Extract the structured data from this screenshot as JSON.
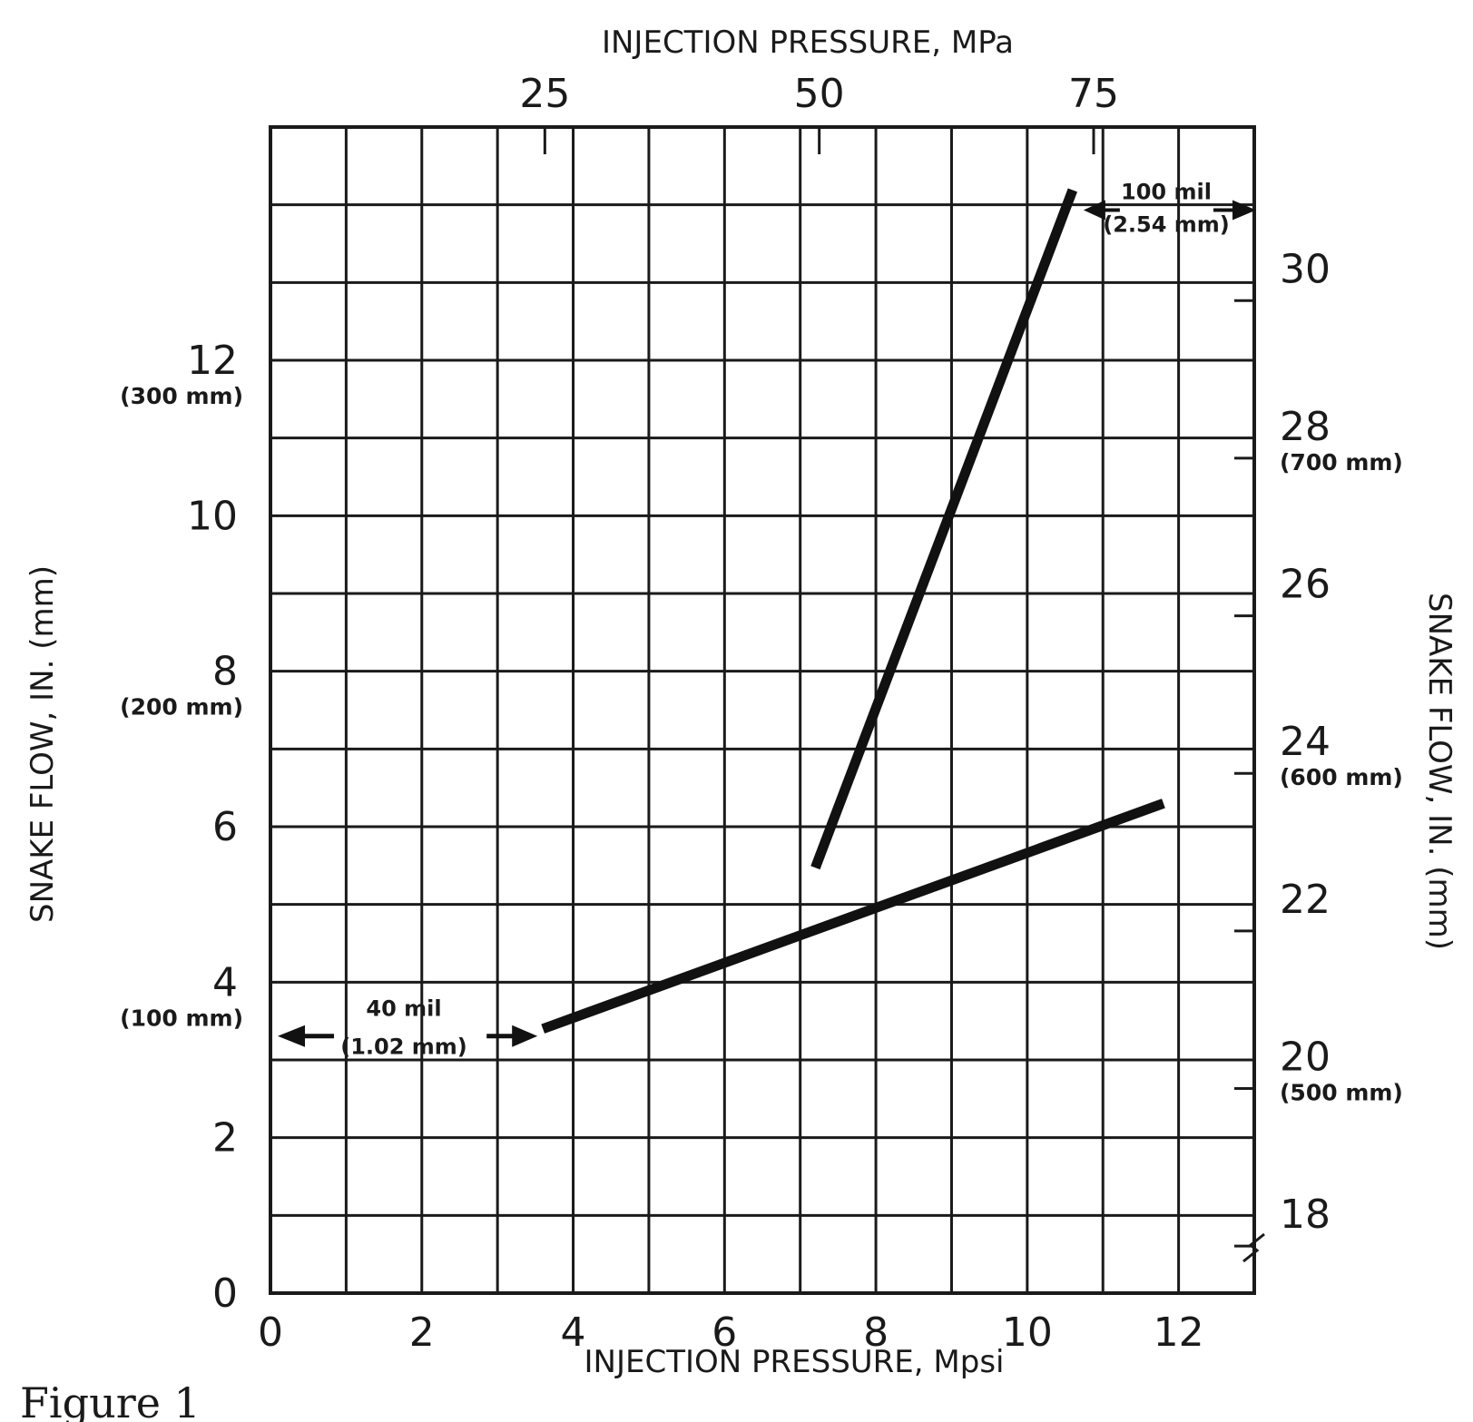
{
  "chart_data": {
    "type": "line",
    "xlabel": "INJECTION PRESSURE, Mpsi",
    "x2label": "INJECTION PRESSURE, MPa",
    "ylabel": "SNAKE FLOW, IN. (mm)",
    "y2label": "SNAKE FLOW, IN. (mm)",
    "xlim": [
      0,
      13
    ],
    "ylim": [
      0,
      15
    ],
    "y2lim": [
      17,
      31.8
    ],
    "grid": true,
    "x_ticks": [
      "0",
      "2",
      "4",
      "6",
      "8",
      "10",
      "12"
    ],
    "x2_ticks": [
      {
        "label": "25",
        "value": 25
      },
      {
        "label": "50",
        "value": 50
      },
      {
        "label": "75",
        "value": 75
      }
    ],
    "y_ticks": [
      {
        "label": "0",
        "value": 0,
        "sub": ""
      },
      {
        "label": "2",
        "value": 2,
        "sub": ""
      },
      {
        "label": "4",
        "value": 4,
        "sub": "(100 mm)"
      },
      {
        "label": "6",
        "value": 6,
        "sub": ""
      },
      {
        "label": "8",
        "value": 8,
        "sub": "(200 mm)"
      },
      {
        "label": "10",
        "value": 10,
        "sub": ""
      },
      {
        "label": "12",
        "value": 12,
        "sub": "(300 mm)"
      }
    ],
    "y2_ticks": [
      {
        "label": "18",
        "value": 18,
        "sub": ""
      },
      {
        "label": "20",
        "value": 20,
        "sub": "(500 mm)"
      },
      {
        "label": "22",
        "value": 22,
        "sub": ""
      },
      {
        "label": "24",
        "value": 24,
        "sub": "(600 mm)"
      },
      {
        "label": "26",
        "value": 26,
        "sub": ""
      },
      {
        "label": "28",
        "value": 28,
        "sub": "(700 mm)"
      },
      {
        "label": "30",
        "value": 30,
        "sub": ""
      }
    ],
    "series": [
      {
        "name": "40 mil (1.02 mm)",
        "axis": "left",
        "x": [
          3.6,
          11.8
        ],
        "y": [
          3.4,
          6.3
        ]
      },
      {
        "name": "100 mil (2.54 mm)",
        "axis": "right",
        "x": [
          7.2,
          10.6
        ],
        "y": [
          22.4,
          31.0
        ]
      }
    ],
    "annotations": [
      {
        "line1": "40 mil",
        "line2": "(1.02 mm)"
      },
      {
        "line1": "100 mil",
        "line2": "(2.54 mm)"
      }
    ]
  },
  "caption": "Figure 1"
}
